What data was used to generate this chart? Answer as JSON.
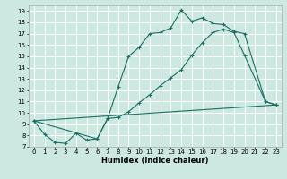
{
  "xlabel": "Humidex (Indice chaleur)",
  "xlim": [
    -0.5,
    23.5
  ],
  "ylim": [
    7,
    19.5
  ],
  "xticks": [
    0,
    1,
    2,
    3,
    4,
    5,
    6,
    7,
    8,
    9,
    10,
    11,
    12,
    13,
    14,
    15,
    16,
    17,
    18,
    19,
    20,
    21,
    22,
    23
  ],
  "yticks": [
    7,
    8,
    9,
    10,
    11,
    12,
    13,
    14,
    15,
    16,
    17,
    18,
    19
  ],
  "bg_color": "#cce8e0",
  "grid_color": "#ffffff",
  "line_color": "#1a6e62",
  "line1_x": [
    0,
    1,
    2,
    3,
    4,
    5,
    6,
    7,
    8,
    9,
    10,
    11,
    12,
    13,
    14,
    15,
    16,
    17,
    18,
    19,
    20,
    22,
    23
  ],
  "line1_y": [
    9.3,
    8.1,
    7.4,
    7.3,
    8.2,
    7.6,
    7.7,
    9.5,
    12.3,
    15.0,
    15.8,
    17.0,
    17.1,
    17.5,
    19.1,
    18.1,
    18.4,
    17.9,
    17.8,
    17.2,
    17.0,
    11.0,
    10.7
  ],
  "line2_x": [
    0,
    6,
    7,
    8,
    9,
    10,
    11,
    12,
    13,
    14,
    15,
    16,
    17,
    18,
    19,
    20,
    22,
    23
  ],
  "line2_y": [
    9.3,
    7.7,
    9.5,
    9.6,
    10.1,
    10.9,
    11.6,
    12.4,
    13.1,
    13.8,
    15.1,
    16.2,
    17.1,
    17.4,
    17.1,
    15.1,
    11.0,
    10.7
  ],
  "line3_x": [
    0,
    23
  ],
  "line3_y": [
    9.3,
    10.7
  ]
}
